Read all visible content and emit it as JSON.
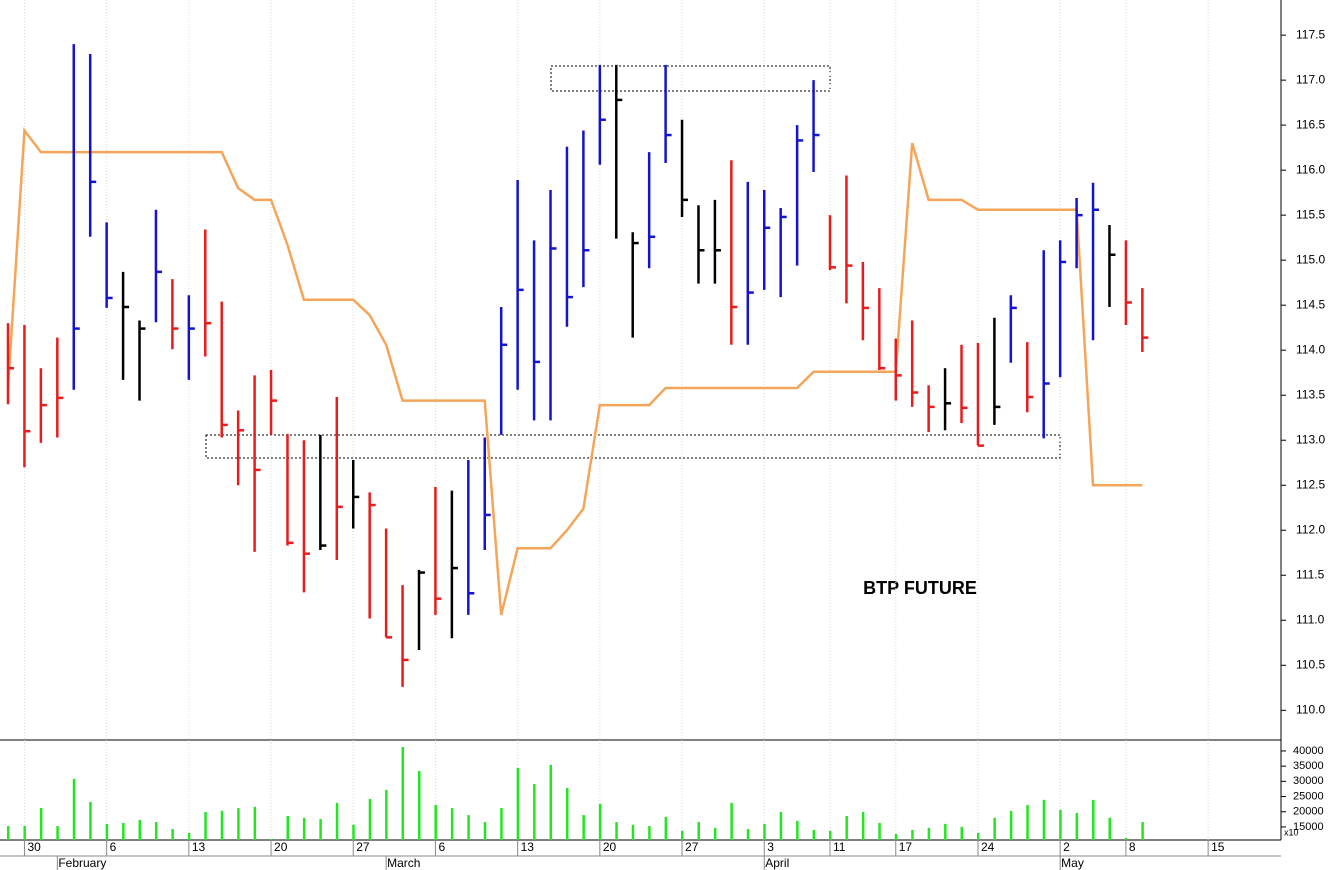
{
  "chart_data": {
    "type": "ohlc",
    "title": "BTP FUTURE",
    "categories": [
      null,
      "30",
      null,
      null,
      null,
      null,
      "6",
      null,
      null,
      null,
      null,
      "13",
      null,
      null,
      null,
      null,
      "20",
      null,
      null,
      null,
      null,
      "27",
      null,
      null,
      null,
      null,
      "6",
      null,
      null,
      null,
      null,
      "13",
      null,
      null,
      null,
      null,
      "20",
      null,
      null,
      null,
      null,
      "27",
      null,
      null,
      null,
      null,
      "3",
      null,
      null,
      null,
      "11",
      null,
      null,
      null,
      "17",
      null,
      null,
      null,
      null,
      "24",
      null,
      null,
      null,
      null,
      "2",
      null,
      null,
      null,
      "8",
      null,
      null,
      null,
      null,
      "15"
    ],
    "month_labels": [
      null,
      null,
      null,
      "February",
      null,
      null,
      null,
      null,
      null,
      null,
      null,
      null,
      null,
      null,
      null,
      null,
      null,
      null,
      null,
      null,
      null,
      null,
      null,
      "March",
      null,
      null,
      null,
      null,
      null,
      null,
      null,
      null,
      null,
      null,
      null,
      null,
      null,
      null,
      null,
      null,
      null,
      null,
      null,
      null,
      null,
      null,
      "April",
      null,
      null,
      null,
      null,
      null,
      null,
      null,
      null,
      null,
      null,
      null,
      null,
      null,
      null,
      null,
      null,
      null,
      "May",
      null,
      null,
      null,
      null,
      null,
      null,
      null,
      null,
      null
    ],
    "high": [
      114.3,
      114.28,
      113.8,
      114.14,
      117.4,
      117.29,
      115.42,
      114.87,
      114.33,
      115.56,
      114.79,
      114.61,
      115.34,
      114.54,
      113.33,
      113.72,
      113.78,
      113.07,
      113.0,
      113.06,
      113.48,
      112.78,
      112.42,
      112.02,
      111.39,
      111.56,
      112.48,
      112.44,
      112.78,
      113.03,
      114.48,
      115.89,
      115.22,
      115.78,
      116.26,
      116.44,
      117.17,
      117.17,
      115.31,
      116.2,
      117.17,
      116.56,
      115.61,
      115.67,
      116.11,
      115.87,
      115.78,
      115.58,
      116.5,
      117.0,
      115.5,
      115.94,
      114.98,
      114.69,
      114.13,
      114.33,
      113.61,
      113.8,
      114.06,
      114.08,
      114.36,
      114.61,
      114.09,
      115.11,
      115.22,
      115.69,
      115.86,
      115.39,
      115.22,
      114.69,
      null,
      null,
      null,
      null
    ],
    "low": [
      113.4,
      112.7,
      112.97,
      113.03,
      113.56,
      115.26,
      114.47,
      113.67,
      113.44,
      114.31,
      114.01,
      113.67,
      113.93,
      113.03,
      112.5,
      111.76,
      113.06,
      111.83,
      111.31,
      111.78,
      111.67,
      112.02,
      111.02,
      110.81,
      110.26,
      110.67,
      111.06,
      110.8,
      111.06,
      111.78,
      113.06,
      113.56,
      113.22,
      113.22,
      114.26,
      114.7,
      116.06,
      115.24,
      114.14,
      114.91,
      116.08,
      115.48,
      114.74,
      114.74,
      114.06,
      114.06,
      114.67,
      114.59,
      114.94,
      115.98,
      114.89,
      114.52,
      114.11,
      113.78,
      113.44,
      113.37,
      113.09,
      113.11,
      113.19,
      112.94,
      113.17,
      113.86,
      113.31,
      113.02,
      113.7,
      114.91,
      114.11,
      114.48,
      114.28,
      113.98,
      null,
      null,
      null,
      null
    ],
    "close": [
      113.8,
      113.1,
      113.39,
      113.47,
      114.24,
      115.87,
      114.58,
      114.48,
      114.24,
      114.87,
      114.24,
      114.24,
      114.3,
      113.17,
      113.11,
      112.67,
      113.44,
      111.86,
      111.74,
      111.83,
      112.26,
      112.37,
      112.28,
      110.81,
      110.56,
      111.53,
      111.24,
      111.58,
      111.3,
      112.17,
      114.06,
      114.67,
      113.87,
      115.13,
      114.59,
      115.11,
      116.56,
      116.78,
      115.19,
      115.26,
      116.39,
      115.67,
      115.11,
      115.11,
      114.48,
      114.64,
      115.36,
      115.48,
      116.33,
      116.39,
      114.92,
      114.94,
      114.47,
      113.8,
      113.72,
      113.53,
      113.37,
      113.41,
      113.36,
      112.94,
      113.37,
      114.47,
      113.48,
      113.63,
      114.98,
      115.5,
      115.56,
      115.06,
      114.53,
      114.14,
      null,
      null,
      null,
      null
    ],
    "bar_colors": [
      "#e81c1c",
      "#e81c1c",
      "#e81c1c",
      "#e81c1c",
      "#1414d0",
      "#1414d0",
      "#1414d0",
      "#000000",
      "#000000",
      "#1414d0",
      "#e81c1c",
      "#1414d0",
      "#e81c1c",
      "#e81c1c",
      "#e81c1c",
      "#e81c1c",
      "#e81c1c",
      "#e81c1c",
      "#e81c1c",
      "#000000",
      "#e81c1c",
      "#000000",
      "#e81c1c",
      "#e81c1c",
      "#e81c1c",
      "#000000",
      "#e81c1c",
      "#000000",
      "#1414d0",
      "#1414d0",
      "#1414d0",
      "#1414d0",
      "#1414d0",
      "#1414d0",
      "#1414d0",
      "#1414d0",
      "#1414d0",
      "#000000",
      "#000000",
      "#1414d0",
      "#1414d0",
      "#000000",
      "#000000",
      "#000000",
      "#e81c1c",
      "#1414d0",
      "#1414d0",
      "#1414d0",
      "#1414d0",
      "#1414d0",
      "#e81c1c",
      "#e81c1c",
      "#e81c1c",
      "#e81c1c",
      "#e81c1c",
      "#e81c1c",
      "#e81c1c",
      "#000000",
      "#e81c1c",
      "#e81c1c",
      "#000000",
      "#1414d0",
      "#e81c1c",
      "#1414d0",
      "#1414d0",
      "#1414d0",
      "#1414d0",
      "#000000",
      "#e81c1c",
      "#e81c1c",
      null,
      null,
      null,
      null
    ],
    "line": {
      "color": "#f5a55a",
      "values": [
        113.58,
        116.44,
        116.2,
        116.2,
        116.2,
        116.2,
        116.2,
        116.2,
        116.2,
        116.2,
        116.2,
        116.2,
        116.2,
        116.2,
        115.8,
        115.67,
        115.67,
        115.17,
        114.56,
        114.56,
        114.56,
        114.56,
        114.39,
        114.06,
        113.44,
        113.44,
        113.44,
        113.44,
        113.44,
        113.44,
        111.06,
        111.8,
        111.8,
        111.8,
        112.0,
        112.24,
        113.39,
        113.39,
        113.39,
        113.39,
        113.58,
        113.58,
        113.58,
        113.58,
        113.58,
        113.58,
        113.58,
        113.58,
        113.58,
        113.76,
        113.76,
        113.76,
        113.76,
        113.76,
        113.76,
        116.3,
        115.67,
        115.67,
        115.67,
        115.56,
        115.56,
        115.56,
        115.56,
        115.56,
        115.56,
        115.56,
        112.5,
        112.5,
        112.5,
        112.5,
        null,
        null,
        null,
        null
      ]
    },
    "ylim": [
      109.67,
      117.89
    ],
    "yticks": [
      {
        "value": 110,
        "label": "110.0"
      },
      110.5,
      {
        "value": 111,
        "label": "111.0"
      },
      111.5,
      {
        "value": 112,
        "label": "112.0"
      },
      112.5,
      {
        "value": 113,
        "label": "113.0"
      },
      113.5,
      {
        "value": 114,
        "label": "114.0"
      },
      114.5,
      {
        "value": 115,
        "label": "115.0"
      },
      115.5,
      {
        "value": 116,
        "label": "116.0"
      },
      116.5,
      {
        "value": 117,
        "label": "117.0"
      },
      117.5
    ],
    "grid": true,
    "volume": {
      "color": "#22e622",
      "values": [
        15300,
        15300,
        21250,
        15300,
        30800,
        23200,
        16000,
        16300,
        17300,
        16600,
        14300,
        13000,
        19900,
        20300,
        21200,
        21600,
        11000,
        18600,
        18000,
        17600,
        22900,
        15700,
        24200,
        27200,
        41300,
        33400,
        22200,
        21200,
        18900,
        16600,
        21200,
        34400,
        29100,
        35400,
        27800,
        18900,
        22600,
        16600,
        15700,
        15300,
        18300,
        13700,
        16600,
        14700,
        22900,
        14300,
        16000,
        19900,
        17000,
        14000,
        13700,
        18600,
        19900,
        16300,
        12700,
        14000,
        14700,
        16000,
        15000,
        13000,
        18000,
        20300,
        22200,
        23900,
        20600,
        19600,
        23900,
        18000,
        11400,
        16600,
        null,
        null,
        null,
        null
      ],
      "ylim": [
        10700,
        43600
      ],
      "yticks": [
        15000,
        20000,
        25000,
        30000,
        35000,
        40000
      ],
      "multiplier_label": "x10"
    }
  }
}
